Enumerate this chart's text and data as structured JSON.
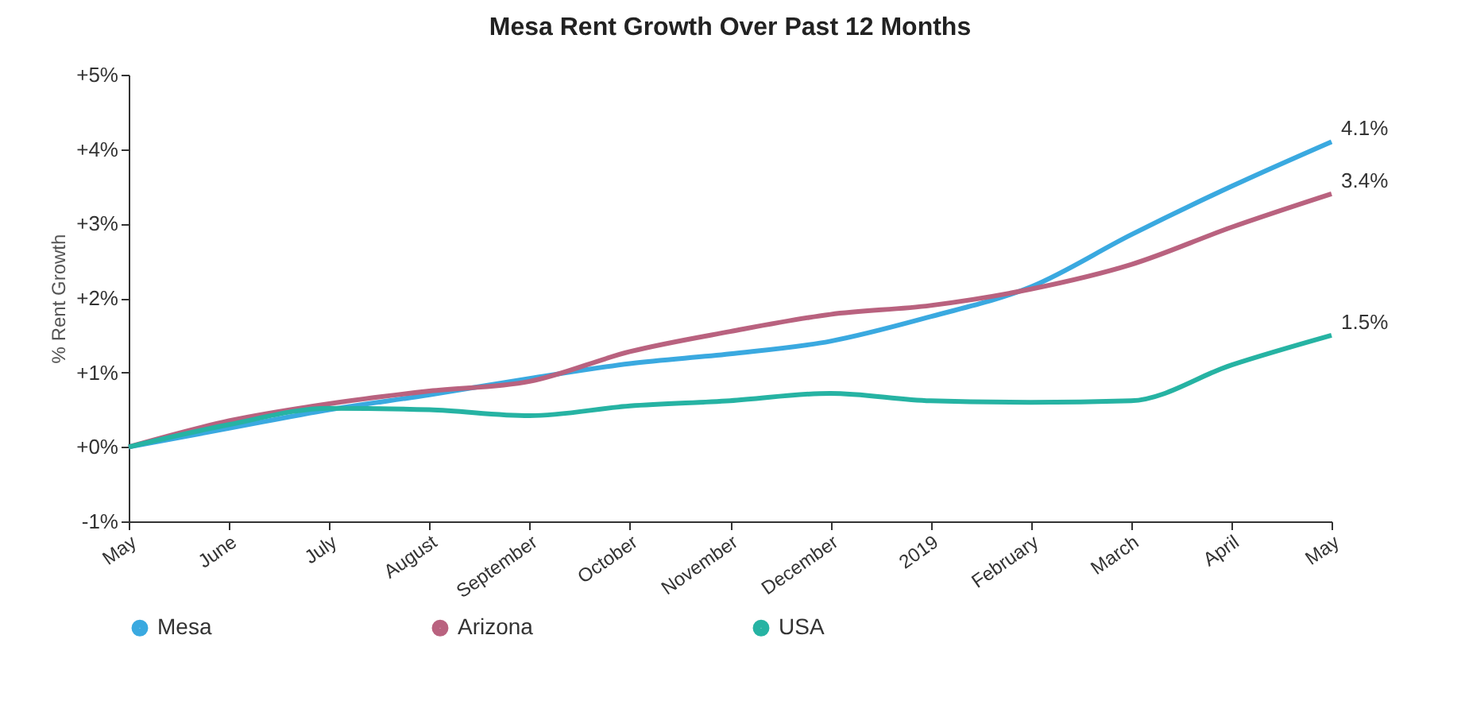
{
  "chart_data": {
    "type": "line",
    "title": "Mesa Rent Growth Over Past 12 Months",
    "ylabel": "% Rent Growth",
    "categories": [
      "May",
      "June",
      "July",
      "August",
      "September",
      "October",
      "November",
      "December",
      "2019",
      "February",
      "March",
      "April",
      "May"
    ],
    "series": [
      {
        "name": "Mesa",
        "color": "#3aa9e0",
        "values": [
          0,
          0.25,
          0.5,
          0.7,
          0.92,
          1.12,
          1.25,
          1.42,
          1.75,
          2.15,
          2.85,
          3.5,
          4.1
        ],
        "value_labels": [
          null,
          null,
          null,
          null,
          null,
          null,
          null,
          null,
          null,
          null,
          null,
          null,
          "4.1%"
        ]
      },
      {
        "name": "Arizona",
        "color": "#b9627f",
        "values": [
          0,
          0.35,
          0.58,
          0.75,
          0.88,
          1.28,
          1.55,
          1.78,
          1.9,
          2.12,
          2.45,
          2.95,
          3.4
        ],
        "value_labels": [
          null,
          null,
          null,
          null,
          null,
          null,
          null,
          null,
          null,
          null,
          null,
          null,
          "3.4%"
        ]
      },
      {
        "name": "USA",
        "color": "#26b3a3",
        "values": [
          0,
          0.3,
          0.52,
          0.5,
          0.42,
          0.55,
          0.62,
          0.72,
          0.62,
          0.6,
          0.62,
          1.1,
          1.5
        ],
        "value_labels": [
          null,
          null,
          null,
          null,
          null,
          null,
          null,
          null,
          null,
          null,
          null,
          null,
          "1.5%"
        ]
      }
    ],
    "ylim": [
      -1,
      5
    ],
    "yticks": [
      {
        "value": -1,
        "label": "-1%"
      },
      {
        "value": 0,
        "label": "+0%"
      },
      {
        "value": 1,
        "label": "+1%"
      },
      {
        "value": 2,
        "label": "+2%"
      },
      {
        "value": 3,
        "label": "+3%"
      },
      {
        "value": 4,
        "label": "+4%"
      },
      {
        "value": 5,
        "label": "+5%"
      }
    ],
    "grid": false,
    "legend": "bottom",
    "marker": "none",
    "line_style": "solid"
  }
}
